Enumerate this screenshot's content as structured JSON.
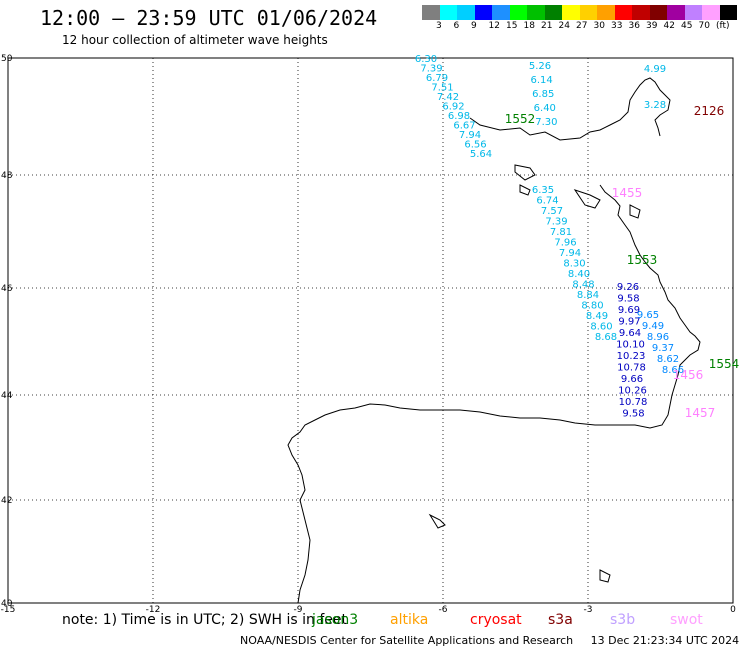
{
  "header": {
    "title": "12:00 – 23:59 UTC 01/06/2024",
    "subtitle": "12 hour collection of altimeter wave heights"
  },
  "colorbar": {
    "colors": [
      "#7f7f7f",
      "#00ffff",
      "#00cfff",
      "#0000ff",
      "#1e90ff",
      "#00ff00",
      "#00c000",
      "#008000",
      "#ffff00",
      "#ffd000",
      "#ffa000",
      "#ff0000",
      "#c00000",
      "#800000",
      "#a000a0",
      "#c080ff",
      "#ffa0ff",
      "#000000"
    ],
    "labels": [
      "3",
      "6",
      "9",
      "12",
      "15",
      "18",
      "21",
      "24",
      "27",
      "30",
      "33",
      "36",
      "39",
      "42",
      "45",
      "70",
      "(ft)"
    ]
  },
  "axes": {
    "lon_ticks": [
      "-15",
      "-12",
      "-9",
      "-6",
      "-3",
      "0"
    ],
    "lat_ticks": [
      "50",
      "48",
      "46",
      "44",
      "42",
      "40"
    ]
  },
  "tracks": [
    {
      "color": "#00b8e8",
      "values": [
        "6.30",
        "7.39",
        "6.79",
        "7.51",
        "7.42",
        "6.92",
        "6.98",
        "6.67",
        "7.94",
        "6.56",
        "5.64"
      ]
    },
    {
      "color": "#00b8e8",
      "values": [
        "5.26",
        "6.14",
        "6.85",
        "6.40",
        "7.30"
      ]
    },
    {
      "color": "#00b8e8",
      "values": [
        "4.99",
        "3.28"
      ]
    },
    {
      "color": "#00b8e8",
      "values": [
        "6.35",
        "6.74",
        "7.57",
        "7.39",
        "7.81",
        "7.96",
        "7.94",
        "8.30",
        "8.40",
        "8.48",
        "8.84",
        "8.80",
        "8.49",
        "8.60",
        "8.68"
      ]
    },
    {
      "color": "#0000c0",
      "values": [
        "9.26",
        "9.58",
        "9.69",
        "9.97",
        "9.64",
        "10.10",
        "10.23",
        "10.78",
        "9.66",
        "10.26",
        "10.78",
        "9.58"
      ]
    },
    {
      "color": "#0088ff",
      "values": [
        "9.65",
        "9.49",
        "8.96",
        "9.37",
        "8.62",
        "8.66"
      ]
    }
  ],
  "time_labels": [
    {
      "text": "1552",
      "color": "#008000"
    },
    {
      "text": "2126",
      "color": "#800000"
    },
    {
      "text": "1455",
      "color": "#ff80ff"
    },
    {
      "text": "1553",
      "color": "#008000"
    },
    {
      "text": "1554",
      "color": "#008000"
    },
    {
      "text": "1456",
      "color": "#ff80ff"
    },
    {
      "text": "1457",
      "color": "#ff80ff"
    }
  ],
  "note": {
    "text": "note: 1) Time is in UTC; 2) SWH is in feet"
  },
  "satellites": [
    {
      "name": "jason3",
      "color": "#008000"
    },
    {
      "name": "altika",
      "color": "#ffa000"
    },
    {
      "name": "cryosat",
      "color": "#ff0000"
    },
    {
      "name": "s3a",
      "color": "#800000"
    },
    {
      "name": "s3b",
      "color": "#c0a0ff"
    },
    {
      "name": "swot",
      "color": "#ffa0ff"
    }
  ],
  "footer": {
    "credit": "NOAA/NESDIS Center for Satellite Applications and Research",
    "timestamp": "13 Dec 21:23:34 UTC 2024"
  }
}
